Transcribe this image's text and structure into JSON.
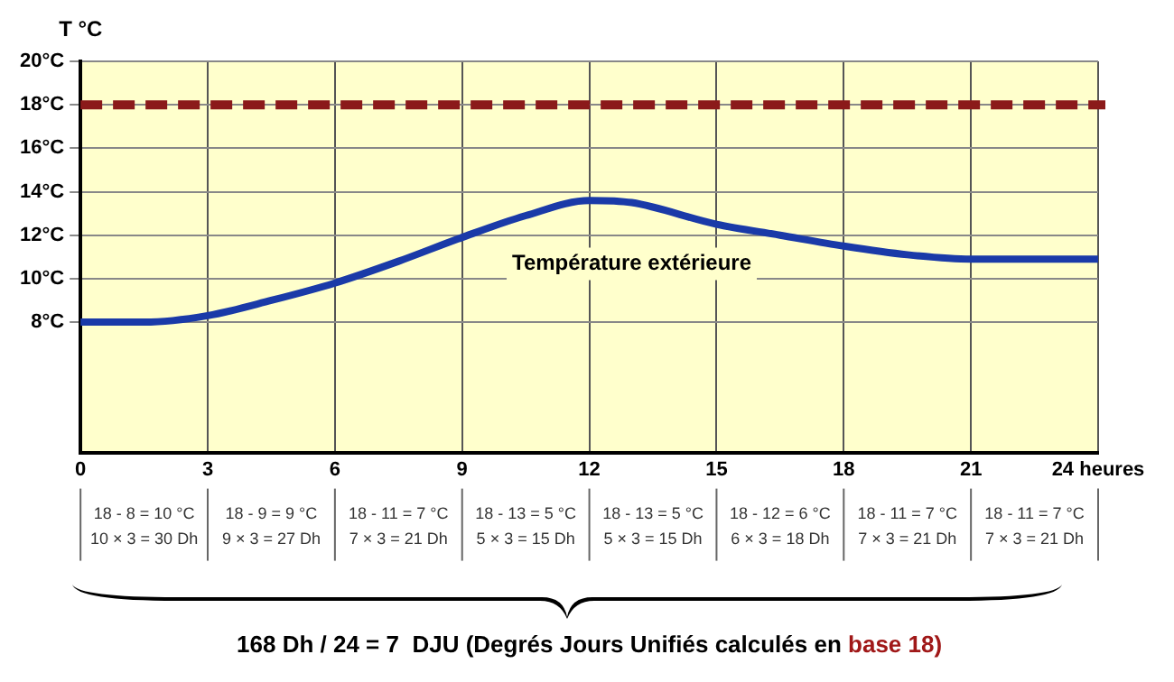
{
  "chart_data": {
    "type": "line",
    "ylabel": "T °C",
    "x": [
      0,
      1.5,
      3,
      4.5,
      6,
      7.5,
      9,
      10.5,
      12,
      13,
      15,
      16.5,
      18,
      19.5,
      21,
      22.5,
      24
    ],
    "series": [
      {
        "name": "Température extérieure",
        "color": "#1a3aa8",
        "values": [
          8,
          8,
          8.3,
          9,
          9.8,
          10.8,
          11.9,
          12.9,
          13.6,
          13.5,
          12.5,
          12,
          11.5,
          11.1,
          10.9,
          10.9,
          10.9
        ]
      }
    ],
    "xlim": [
      0,
      24
    ],
    "xticks": [
      0,
      3,
      6,
      9,
      12,
      15,
      18,
      21,
      {
        "value": 24,
        "label": "24 heures"
      }
    ],
    "ylim": [
      2,
      20
    ],
    "yticks": [
      {
        "value": 8,
        "label": "8°C"
      },
      {
        "value": 10,
        "label": "10°C"
      },
      {
        "value": 12,
        "label": "12°C"
      },
      {
        "value": 14,
        "label": "14°C"
      },
      {
        "value": 16,
        "label": "16°C"
      },
      {
        "value": 18,
        "label": "18°C"
      },
      {
        "value": 20,
        "label": "20°C"
      }
    ],
    "ref_lines": [
      {
        "axis": "y",
        "value": 18,
        "color": "#8b1a1a",
        "line_style": "dashed"
      }
    ],
    "grid": true,
    "legend": false,
    "marker": "none",
    "line_style": "solid",
    "annotations": [
      "18 - 8 = 10 °C\n10 × 3 = 30 Dh",
      "18 - 9 = 9 °C\n9 × 3 = 27 Dh",
      "18 - 11 = 7 °C\n7 × 3 = 21 Dh",
      "18 - 13 = 5 °C\n5 × 3 = 15 Dh",
      "18 - 13 = 5 °C\n5 × 3 = 15 Dh",
      "18 - 12 = 6 °C\n6 × 3 = 18 Dh",
      "18 - 11 = 7 °C\n7 × 3 = 21 Dh",
      "18 - 11 = 7 °C\n7 × 3 = 21 Dh",
      "168 Dh / 24 = 7  DJU (Degrés Jours Unifiés calculés en ",
      "base 18)"
    ]
  }
}
